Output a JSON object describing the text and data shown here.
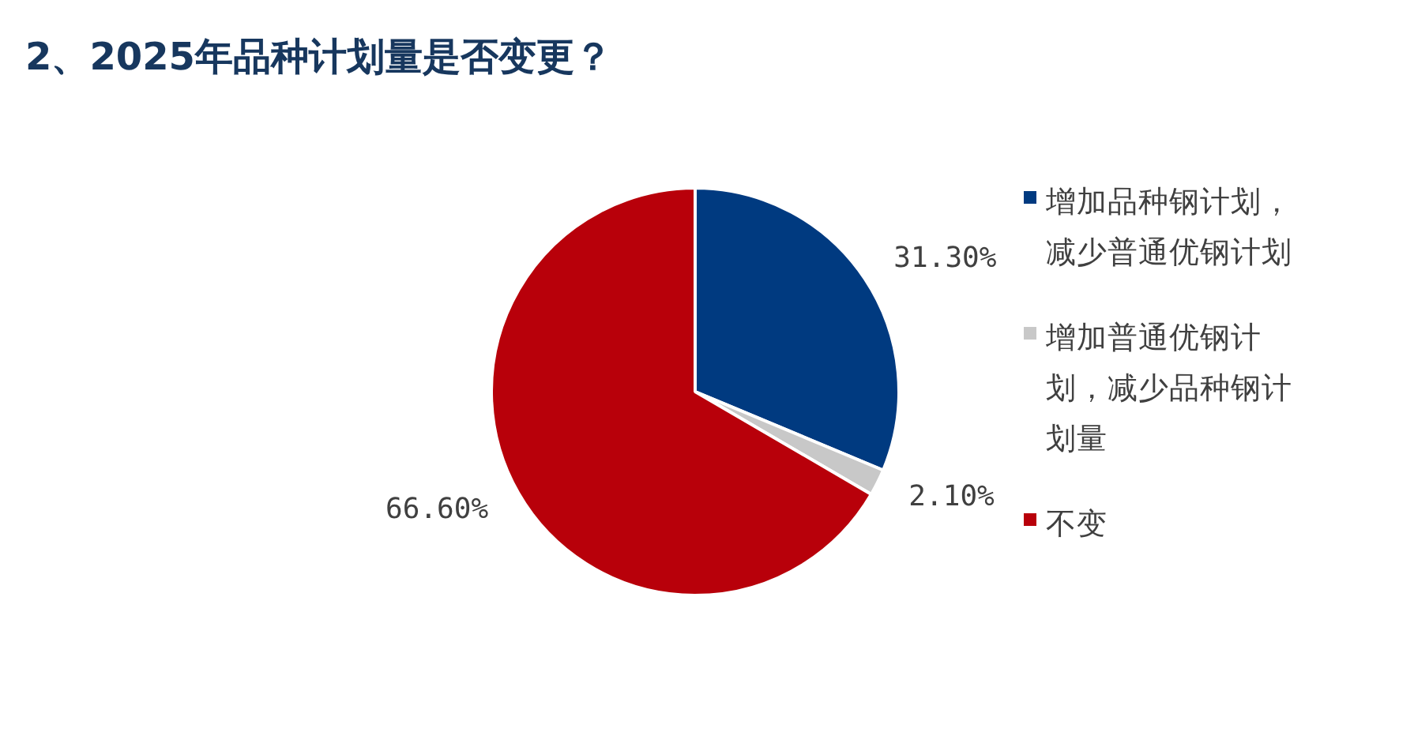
{
  "chart_data": {
    "type": "pie",
    "title": "2、2025年品种计划量是否变更？",
    "categories": [
      "增加品种钢计划，减少普通优钢计划",
      "增加普通优钢计划，减少品种钢计划量",
      "不变"
    ],
    "values": [
      31.3,
      2.1,
      66.6
    ],
    "colors": [
      "#003a80",
      "#c8c8c8",
      "#b8000a"
    ],
    "value_labels": [
      "31.30%",
      "2.10%",
      "66.60%"
    ],
    "legend": "right"
  }
}
